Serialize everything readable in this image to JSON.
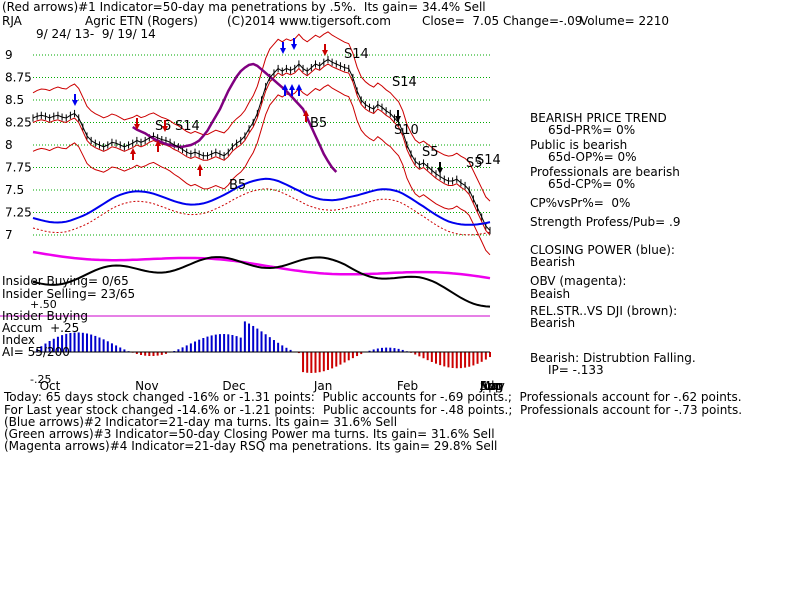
{
  "header": {
    "line1": "(Red arrows)#1 Indicator=50-day ma penetrations by .5%.  Its gain= 34.4% Sell",
    "ticker": "RJA",
    "name": "Agric ETN (Rogers)",
    "source": "(C)2014 www.tigersoft.com",
    "close": "Close=  7.05",
    "change": "Change=-.09",
    "volume": "Volume= 2210",
    "dates": "9/ 24/ 13-  9/ 19/ 14"
  },
  "right_panel": {
    "trend_title": "BEARISH PRICE TREND",
    "pr": "65d-PR%= 0%",
    "public": "Public is bearish",
    "op": "65d-OP%= 0%",
    "professionals": "Professionals are bearish",
    "cp": "65d-CP%= 0%",
    "cpvspr": "CP%vsPr%=  0%",
    "strength": "Strength Profess/Pub= .9",
    "closing_power": "CLOSING POWER (blue):",
    "closing_power_val": "Bearish",
    "obv": "OBV (magenta):",
    "obv_val": "Beaish",
    "relstr": "REL.STR..VS DJI (brown):",
    "relstr_val": "Bearish",
    "accum": "Bearish: Distrubtion Falling.",
    "ip": "IP= -.133"
  },
  "left_panel": {
    "insider_buying": "Insider Buying= 0/65",
    "insider_selling": "Insider Selling= 23/65",
    "plus50": "+.50",
    "insider_buying2": "Insider Buying",
    "accum_index": "Accum  +.25",
    "index": "Index",
    "ai": "AI= 55/200",
    "minus25": "-.25"
  },
  "footer": {
    "line1": "Today: 65 days stock changed -16% or -1.31 points:  Public accounts for -.69 points.;  Professionals account for -.62 points.",
    "line2": "For Last year stock changed -14.6% or -1.21 points:  Public accounts for -.48 points.;  Professionals account for -.73 points.",
    "line3": "(Blue arrows)#2 Indicator=21-day ma turns. Its gain= 31.6% Sell",
    "line4": "(Green arrows)#3 Indicator=50-day Closing Power ma turns. Its gain= 31.6% Sell",
    "line5": "(Magenta arrows)#4 Indicator=21-day RSQ ma penetrations. Its gain= 29.8% Sell"
  },
  "colors": {
    "price": "#000000",
    "band": "#cc0000",
    "ma50": "#800080",
    "closing_power": "#0000ee",
    "obv": "#ee00ee",
    "relstr": "#000000",
    "grid": "#00aa00",
    "accum_pos": "#0000cc",
    "accum_neg": "#cc0000"
  },
  "chart_data": {
    "type": "line",
    "ylim": [
      6.9,
      9.1
    ],
    "yticks": [
      7,
      7.25,
      7.5,
      7.75,
      8,
      8.25,
      8.5,
      8.75,
      9
    ],
    "ytick_labels": [
      "7",
      "7.25",
      "7.5",
      "7.75",
      "8",
      "8.25",
      "8.5",
      "8.75",
      "9"
    ],
    "months": [
      "Oct",
      "Nov",
      "Dec",
      "Jan",
      "Feb",
      "Mar",
      "Apr",
      "May",
      "Jun",
      "Jul",
      "Aug",
      "Sep"
    ],
    "month_index": [
      4,
      27,
      48,
      70,
      90,
      110,
      132,
      154,
      176,
      197,
      218,
      240
    ],
    "price": [
      8.3,
      8.32,
      8.33,
      8.32,
      8.3,
      8.32,
      8.33,
      8.31,
      8.3,
      8.33,
      8.35,
      8.3,
      8.2,
      8.1,
      8.05,
      8.02,
      8.0,
      7.98,
      8.0,
      8.03,
      8.02,
      8.0,
      7.98,
      8.0,
      8.02,
      8.05,
      8.03,
      8.05,
      8.08,
      8.1,
      8.08,
      8.06,
      8.05,
      8.03,
      8.0,
      7.98,
      7.95,
      7.92,
      7.9,
      7.92,
      7.9,
      7.88,
      7.88,
      7.9,
      7.92,
      7.9,
      7.88,
      7.92,
      7.98,
      8.02,
      8.05,
      8.1,
      8.18,
      8.25,
      8.35,
      8.5,
      8.65,
      8.75,
      8.8,
      8.85,
      8.82,
      8.85,
      8.83,
      8.85,
      8.9,
      8.85,
      8.82,
      8.86,
      8.9,
      8.88,
      8.92,
      8.95,
      8.92,
      8.9,
      8.88,
      8.86,
      8.85,
      8.75,
      8.6,
      8.5,
      8.45,
      8.42,
      8.4,
      8.45,
      8.42,
      8.38,
      8.35,
      8.3,
      8.25,
      8.15,
      8.0,
      7.9,
      7.82,
      7.78,
      7.8,
      7.76,
      7.72,
      7.68,
      7.65,
      7.62,
      7.6,
      7.6,
      7.62,
      7.58,
      7.55,
      7.5,
      7.4,
      7.3,
      7.2,
      7.1,
      7.05
    ],
    "ma50": [
      null,
      null,
      null,
      null,
      null,
      null,
      null,
      null,
      null,
      null,
      null,
      null,
      null,
      null,
      null,
      null,
      null,
      null,
      null,
      null,
      null,
      null,
      null,
      null,
      8.2,
      8.17,
      8.15,
      8.13,
      8.1,
      8.07,
      8.05,
      8.03,
      8.01,
      8.0,
      7.99,
      7.98,
      7.98,
      7.99,
      8.0,
      8.02,
      8.05,
      8.1,
      8.16,
      8.24,
      8.32,
      8.4,
      8.5,
      8.6,
      8.68,
      8.76,
      8.82,
      8.86,
      8.89,
      8.9,
      8.88,
      8.84,
      8.8,
      8.76,
      8.72,
      8.68,
      8.64,
      8.6,
      8.55,
      8.5,
      8.45,
      8.4,
      8.3,
      8.2,
      8.1,
      8.0,
      7.9,
      7.82,
      7.75,
      7.7
    ],
    "closing_power_label": "CLOSING POWER (blue)",
    "obv_label": "OBV (magenta)",
    "relstr_label": "REL.STR..VS DJI (brown)",
    "annotations": [
      "S5",
      "S14",
      "S14",
      "S14",
      "S10",
      "S5",
      "S5",
      "S14",
      "B5",
      "B5"
    ]
  }
}
